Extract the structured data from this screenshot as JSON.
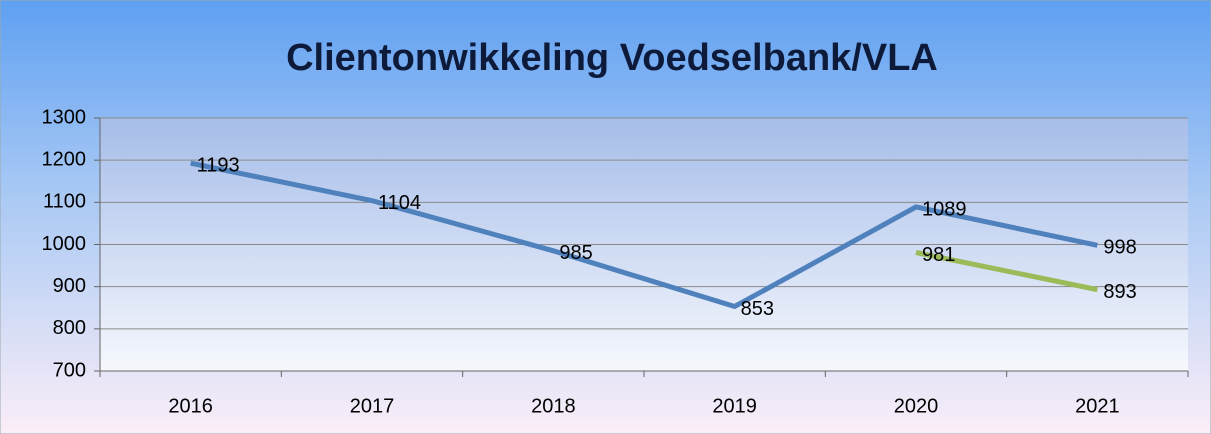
{
  "chart_data": {
    "type": "line",
    "title": "Clientonwikkeling Voedselbank/VLA",
    "categories": [
      "2016",
      "2017",
      "2018",
      "2019",
      "2020",
      "2021"
    ],
    "series": [
      {
        "color": "#4f81bd",
        "values": [
          1193,
          1104,
          985,
          853,
          1089,
          998
        ]
      },
      {
        "color": "#9bbb59",
        "values": [
          null,
          null,
          null,
          null,
          981,
          893
        ]
      }
    ],
    "ylim": [
      700,
      1300
    ],
    "yticks": [
      700,
      800,
      900,
      1000,
      1100,
      1200,
      1300
    ],
    "grid": true
  }
}
